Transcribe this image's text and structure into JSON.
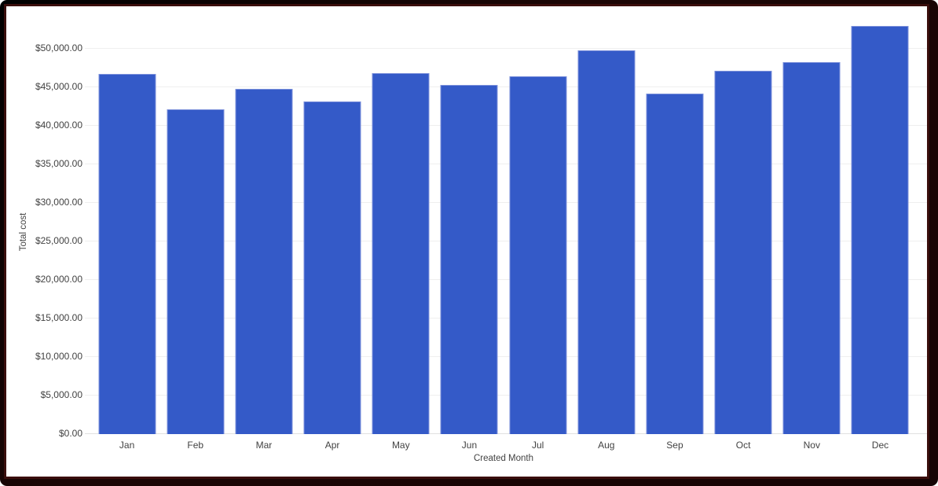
{
  "chart_data": {
    "type": "bar",
    "title": "",
    "xlabel": "Created Month",
    "ylabel": "Total cost",
    "categories": [
      "Jan",
      "Feb",
      "Mar",
      "Apr",
      "May",
      "Jun",
      "Jul",
      "Aug",
      "Sep",
      "Oct",
      "Nov",
      "Dec"
    ],
    "values": [
      46700,
      42100,
      44800,
      43200,
      46800,
      45300,
      46400,
      49800,
      44200,
      47100,
      48300,
      53000
    ],
    "series": [
      {
        "name": "Total cost",
        "values": [
          46700,
          42100,
          44800,
          43200,
          46800,
          45300,
          46400,
          49800,
          44200,
          47100,
          48300,
          53000
        ]
      }
    ],
    "y_ticks": [
      {
        "value": 0,
        "label": "$0.00"
      },
      {
        "value": 5000,
        "label": "$5,000.00"
      },
      {
        "value": 10000,
        "label": "$10,000.00"
      },
      {
        "value": 15000,
        "label": "$15,000.00"
      },
      {
        "value": 20000,
        "label": "$20,000.00"
      },
      {
        "value": 25000,
        "label": "$25,000.00"
      },
      {
        "value": 30000,
        "label": "$30,000.00"
      },
      {
        "value": 35000,
        "label": "$35,000.00"
      },
      {
        "value": 40000,
        "label": "$40,000.00"
      },
      {
        "value": 45000,
        "label": "$45,000.00"
      },
      {
        "value": 50000,
        "label": "$50,000.00"
      }
    ],
    "ylim": [
      0,
      54300
    ],
    "grid": "horizontal",
    "legend": "none"
  },
  "colors": {
    "bar_fill": "#345AC8",
    "bar_stroke": "#7E92DB",
    "gridline": "#efefef",
    "baseline": "#e0e0e0",
    "axis_label": "#424242",
    "frame": "#1c0605",
    "background": "#ffffff"
  }
}
